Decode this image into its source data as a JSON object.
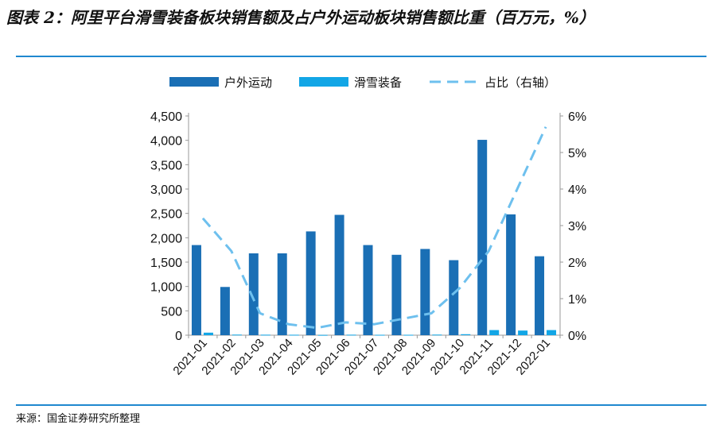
{
  "title": "图表 2：阿里平台滑雪装备板块销售额及占户外运动板块销售额比重（百万元，%）",
  "source": "来源：国金证券研究所整理",
  "colors": {
    "outdoor": "#1a6fb5",
    "ski": "#12a6e6",
    "ratio": "#6ec0ee",
    "rule": "#1f88cf"
  },
  "chart_data": {
    "type": "bar",
    "categories": [
      "2021-01",
      "2021-02",
      "2021-03",
      "2021-04",
      "2021-05",
      "2021-06",
      "2021-07",
      "2021-08",
      "2021-09",
      "2021-10",
      "2021-11",
      "2021-12",
      "2022-01"
    ],
    "series": [
      {
        "name": "户外运动",
        "type": "bar",
        "axis": "left",
        "values": [
          1850,
          990,
          1680,
          1680,
          2130,
          2470,
          1850,
          1650,
          1770,
          1540,
          4010,
          2480,
          1620
        ]
      },
      {
        "name": "滑雪装备",
        "type": "bar",
        "axis": "left",
        "values": [
          52,
          12,
          10,
          9,
          6,
          10,
          8,
          8,
          12,
          20,
          105,
          95,
          105
        ]
      },
      {
        "name": "占比（右轴）",
        "type": "line",
        "style": "dashed",
        "axis": "right",
        "values": [
          3.2,
          2.3,
          0.6,
          0.3,
          0.2,
          0.35,
          0.3,
          0.45,
          0.6,
          1.3,
          2.3,
          4.0,
          5.7
        ]
      }
    ],
    "left_axis": {
      "ylim": [
        0,
        4500
      ],
      "ticks": [
        "0",
        "500",
        "1,000",
        "1,500",
        "2,000",
        "2,500",
        "3,000",
        "3,500",
        "4,000",
        "4,500"
      ]
    },
    "right_axis": {
      "ylim": [
        0,
        6
      ],
      "ticks": [
        "0%",
        "1%",
        "2%",
        "3%",
        "4%",
        "5%",
        "6%"
      ]
    },
    "legend": [
      "户外运动",
      "滑雪装备",
      "占比（右轴）"
    ],
    "legend_position": "top"
  }
}
